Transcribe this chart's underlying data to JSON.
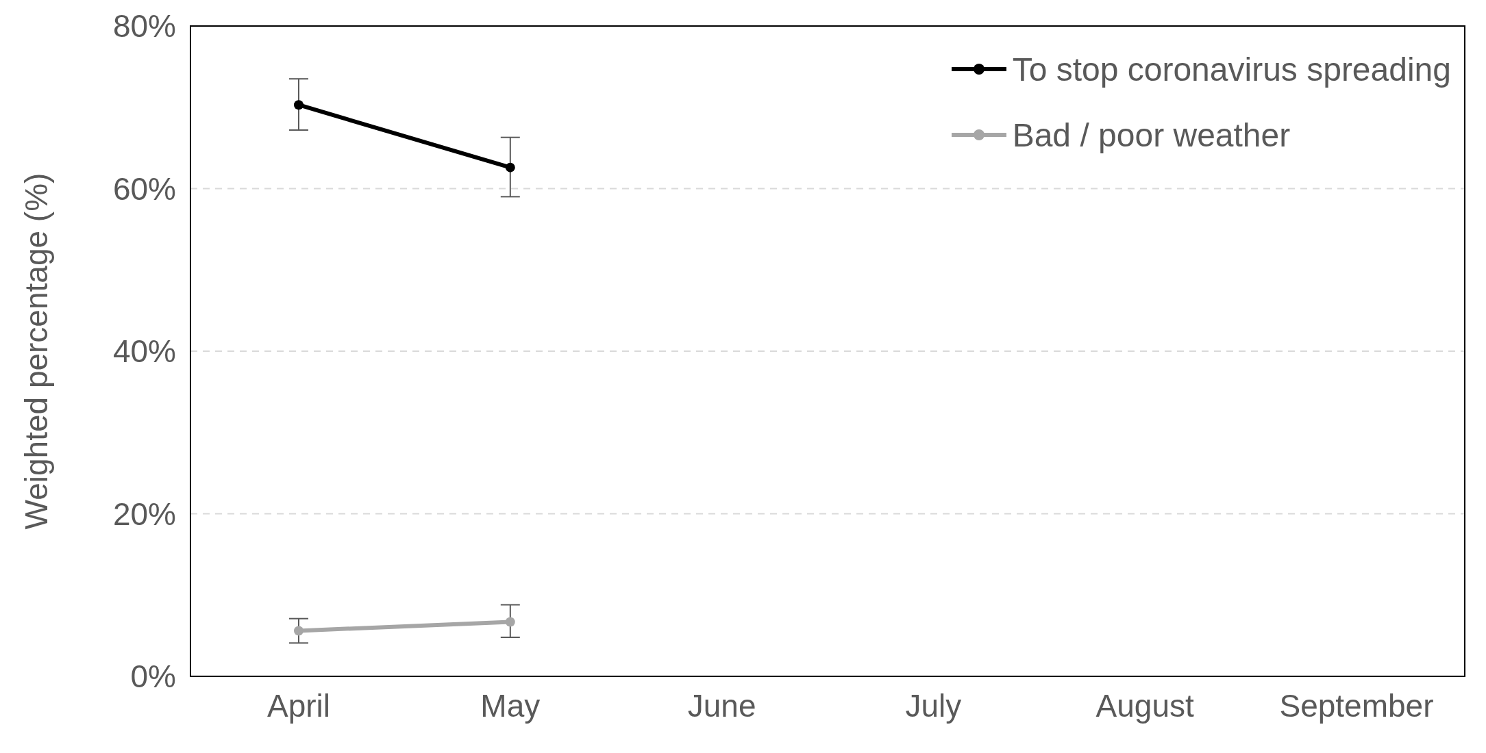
{
  "chart_data": {
    "type": "line",
    "ylabel": "Weighted percentage (%)",
    "categories": [
      "April",
      "May",
      "June",
      "July",
      "August",
      "September"
    ],
    "series": [
      {
        "name": "To stop coronavirus spreading",
        "color": "#000000",
        "values": [
          70.3,
          62.6,
          null,
          null,
          null,
          null
        ],
        "errors": [
          [
            67.2,
            73.5
          ],
          [
            59.0,
            66.3
          ],
          null,
          null,
          null,
          null
        ]
      },
      {
        "name": "Bad / poor weather",
        "color": "#a6a6a6",
        "values": [
          5.6,
          6.7,
          null,
          null,
          null,
          null
        ],
        "errors": [
          [
            4.1,
            7.1
          ],
          [
            4.8,
            8.8
          ],
          null,
          null,
          null,
          null
        ]
      }
    ],
    "ylim": [
      0,
      80
    ],
    "yticks": [
      {
        "value": 0,
        "label": "0%"
      },
      {
        "value": 20,
        "label": "20%"
      },
      {
        "value": 40,
        "label": "40%"
      },
      {
        "value": 60,
        "label": "60%"
      },
      {
        "value": 80,
        "label": "80%"
      }
    ],
    "grid": "y",
    "legend": "top right",
    "marker": "circle",
    "line_style": "solid"
  }
}
